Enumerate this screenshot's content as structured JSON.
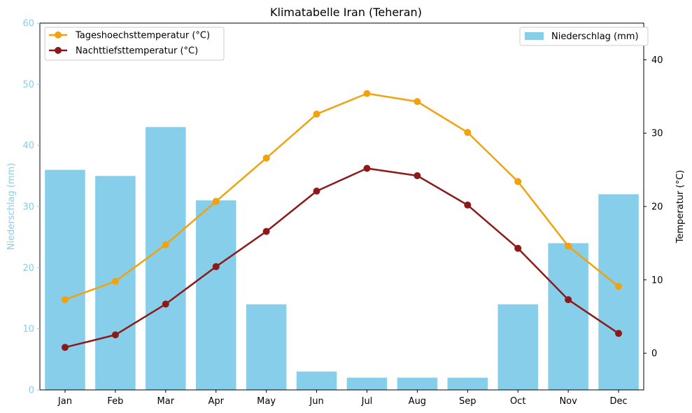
{
  "chart_data": {
    "type": "bar",
    "title": "Klimatabelle Iran (Teheran)",
    "categories": [
      "Jan",
      "Feb",
      "Mar",
      "Apr",
      "May",
      "Jun",
      "Jul",
      "Aug",
      "Sep",
      "Oct",
      "Nov",
      "Dec"
    ],
    "bar_series": {
      "name": "Niederschlag (mm)",
      "axis": "left",
      "color": "#87ceeb",
      "values": [
        36,
        35,
        43,
        31,
        14,
        3,
        2,
        2,
        2,
        14,
        24,
        32
      ]
    },
    "line_series": [
      {
        "name": "Tageshoechsttemperatur (°C)",
        "axis": "right",
        "color": "#f2a20d",
        "values": [
          7.3,
          9.8,
          14.8,
          20.7,
          26.6,
          32.6,
          35.4,
          34.3,
          30.1,
          23.4,
          14.6,
          9.1
        ]
      },
      {
        "name": "Nachttiefsttemperatur (°C)",
        "axis": "right",
        "color": "#8b1a1a",
        "values": [
          0.8,
          2.5,
          6.7,
          11.8,
          16.6,
          22.1,
          25.2,
          24.2,
          20.2,
          14.3,
          7.3,
          2.7
        ]
      }
    ],
    "left_axis": {
      "label": "Niederschlag (mm)",
      "ylim": [
        0,
        60
      ],
      "ticks": [
        0,
        10,
        20,
        30,
        40,
        50,
        60
      ]
    },
    "right_axis": {
      "label": "Temperatur (°C)",
      "ylim": [
        -5,
        45
      ],
      "ticks": [
        0,
        10,
        20,
        30,
        40
      ]
    },
    "legend_left_position": "top-left",
    "legend_right_position": "top-right",
    "grid": false
  }
}
